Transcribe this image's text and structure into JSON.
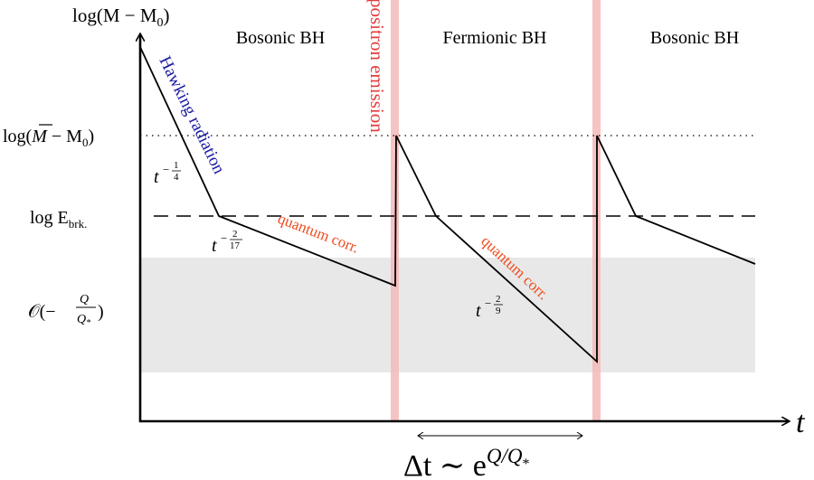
{
  "axes": {
    "y_label": "log(M − M",
    "y_label_sub": "0",
    "y_label_tail": ")",
    "x_label": "t"
  },
  "y_ticks": {
    "mbar_pre": "log(",
    "mbar_m": "M",
    "mbar_post": " − M",
    "mbar_sub": "0",
    "mbar_tail": ")",
    "ebrk_pre": "log E",
    "ebrk_sub": "brk.",
    "order_pre": "𝒪(−",
    "order_num": "Q",
    "order_den": "Q",
    "order_den_sub": "*",
    "order_tail": ")"
  },
  "phases": {
    "phase1": "Bosonic BH",
    "phase2": "Fermionic BH",
    "phase3": "Bosonic BH"
  },
  "annotations": {
    "hawking": "Hawking radiation",
    "positron": "positron emission",
    "quantum1": "quantum corr.",
    "quantum2": "quantum corr."
  },
  "exponents": {
    "e1_base": "t",
    "e1_exp_sign": "−",
    "e1_num": "1",
    "e1_den": "4",
    "e2_base": "t",
    "e2_exp_sign": "−",
    "e2_num": "2",
    "e2_den": "17",
    "e3_base": "t",
    "e3_exp_sign": "−",
    "e3_num": "2",
    "e3_den": "9"
  },
  "interval": {
    "delta": "Δt ∼ e",
    "exp": "Q/Q",
    "exp_sub": "*"
  },
  "colors": {
    "curve": "#000000",
    "band": "#e8e8e8",
    "positron_line": "#f4b9b9",
    "positron_text": "#e33b3b",
    "hawking_text": "#1a1aa0",
    "quantum_text": "#ee4c1f"
  }
}
